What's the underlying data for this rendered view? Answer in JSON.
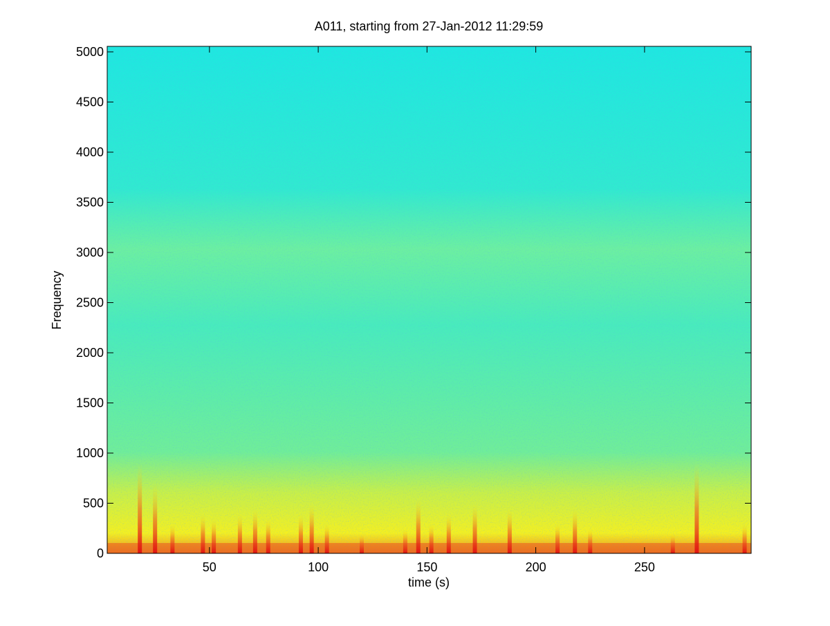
{
  "chart_data": {
    "type": "spectrogram",
    "title": "A011, starting from 27-Jan-2012 11:29:59",
    "xlabel": "time (s)",
    "ylabel": "Frequency",
    "xlim": [
      3,
      299
    ],
    "ylim": [
      0,
      5055
    ],
    "xticks": [
      50,
      100,
      150,
      200,
      250
    ],
    "yticks": [
      0,
      500,
      1000,
      1500,
      2000,
      2500,
      3000,
      3500,
      4000,
      4500,
      5000
    ],
    "series": [
      {
        "color": "#e01010",
        "x": [
          18,
          25,
          33,
          47,
          52,
          64,
          71,
          77,
          92,
          97,
          104,
          120,
          140,
          146,
          152,
          160,
          172,
          188,
          210,
          218,
          225,
          263,
          274,
          296
        ],
        "values": [
          900,
          700,
          300,
          400,
          350,
          400,
          450,
          350,
          400,
          500,
          300,
          200,
          250,
          550,
          300,
          400,
          500,
          450,
          300,
          450,
          250,
          200,
          900,
          300
        ]
      }
    ]
  }
}
